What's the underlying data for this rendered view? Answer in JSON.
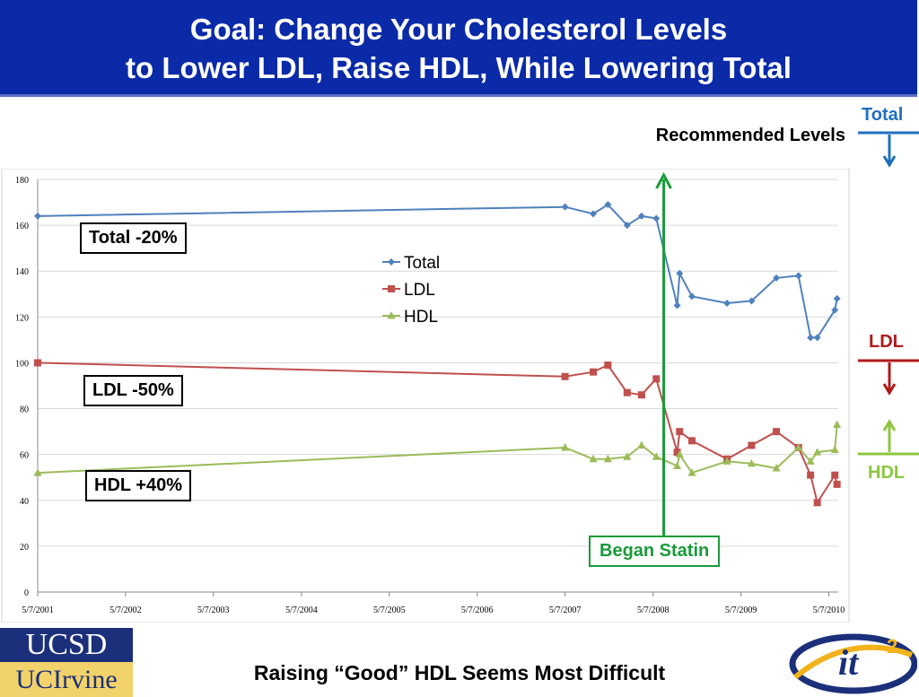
{
  "header": {
    "title_line1": "Goal: Change Your Cholesterol Levels",
    "title_line2": "to Lower LDL, Raise HDL, While Lowering Total"
  },
  "recommended_levels": "Recommended Levels",
  "reference_markers": {
    "total": "Total",
    "ldl": "LDL",
    "hdl": "HDL"
  },
  "annotations": {
    "total_change": "Total -20%",
    "ldl_change": "LDL -50%",
    "hdl_change": "HDL +40%",
    "began_statin": "Began Statin"
  },
  "footer": {
    "caption": "Raising “Good” HDL Seems Most Difficult",
    "logo_ucsd": "UCSD",
    "logo_uci": "UCIrvine",
    "logo_it2": "it",
    "logo_it2_sup": "2"
  },
  "colors": {
    "header_bg": "#0a2aa8",
    "total": "#4f81bd",
    "ldl": "#c0504d",
    "hdl": "#9bbb59",
    "statin_marker": "#1a9a3a",
    "total_ref": "#1f6fbf",
    "ldl_ref": "#b01919",
    "hdl_ref": "#8cc63f"
  },
  "chart_data": {
    "type": "line",
    "ylim": [
      0,
      180
    ],
    "yticks": [
      0,
      20,
      40,
      60,
      80,
      100,
      120,
      140,
      160,
      180
    ],
    "xlim": [
      "2001-05-07",
      "2010-06-15"
    ],
    "xtick_labels": [
      "5/7/2001",
      "5/7/2002",
      "5/7/2003",
      "5/7/2004",
      "5/7/2005",
      "5/7/2006",
      "5/7/2007",
      "5/7/2008",
      "5/7/2009",
      "5/7/2010"
    ],
    "xtick_dates": [
      "2001-05-07",
      "2002-05-07",
      "2003-05-07",
      "2004-05-07",
      "2005-05-07",
      "2006-05-07",
      "2007-05-07",
      "2008-05-07",
      "2009-05-07",
      "2010-05-07"
    ],
    "legend_position": "center",
    "grid": "horizontal",
    "statin_start_date": "2008-06-20",
    "series": [
      {
        "name": "Total",
        "marker": "diamond",
        "points": [
          [
            "2001-05-07",
            164
          ],
          [
            "2007-05-07",
            168
          ],
          [
            "2007-09-01",
            165
          ],
          [
            "2007-11-01",
            169
          ],
          [
            "2008-01-20",
            160
          ],
          [
            "2008-03-20",
            164
          ],
          [
            "2008-05-20",
            163
          ],
          [
            "2008-08-15",
            125
          ],
          [
            "2008-08-25",
            139
          ],
          [
            "2008-10-15",
            129
          ],
          [
            "2009-03-10",
            126
          ],
          [
            "2009-06-20",
            127
          ],
          [
            "2009-10-01",
            137
          ],
          [
            "2010-01-01",
            138
          ],
          [
            "2010-02-20",
            111
          ],
          [
            "2010-03-20",
            111
          ],
          [
            "2010-06-01",
            123
          ],
          [
            "2010-06-10",
            128
          ]
        ]
      },
      {
        "name": "LDL",
        "marker": "square",
        "points": [
          [
            "2001-05-07",
            100
          ],
          [
            "2007-05-07",
            94
          ],
          [
            "2007-09-01",
            96
          ],
          [
            "2007-11-01",
            99
          ],
          [
            "2008-01-20",
            87
          ],
          [
            "2008-03-20",
            86
          ],
          [
            "2008-05-20",
            93
          ],
          [
            "2008-08-15",
            61
          ],
          [
            "2008-08-25",
            70
          ],
          [
            "2008-10-15",
            66
          ],
          [
            "2009-03-10",
            58
          ],
          [
            "2009-06-20",
            64
          ],
          [
            "2009-10-01",
            70
          ],
          [
            "2010-01-01",
            63
          ],
          [
            "2010-02-20",
            51
          ],
          [
            "2010-03-20",
            39
          ],
          [
            "2010-06-01",
            51
          ],
          [
            "2010-06-10",
            47
          ]
        ]
      },
      {
        "name": "HDL",
        "marker": "triangle",
        "points": [
          [
            "2001-05-07",
            52
          ],
          [
            "2007-05-07",
            63
          ],
          [
            "2007-09-01",
            58
          ],
          [
            "2007-11-01",
            58
          ],
          [
            "2008-01-20",
            59
          ],
          [
            "2008-03-20",
            64
          ],
          [
            "2008-05-20",
            59
          ],
          [
            "2008-08-15",
            55
          ],
          [
            "2008-08-25",
            60
          ],
          [
            "2008-10-15",
            52
          ],
          [
            "2009-03-10",
            57
          ],
          [
            "2009-06-20",
            56
          ],
          [
            "2009-10-01",
            54
          ],
          [
            "2010-01-01",
            63
          ],
          [
            "2010-02-20",
            57
          ],
          [
            "2010-03-20",
            61
          ],
          [
            "2010-06-01",
            62
          ],
          [
            "2010-06-10",
            73
          ]
        ]
      }
    ]
  }
}
